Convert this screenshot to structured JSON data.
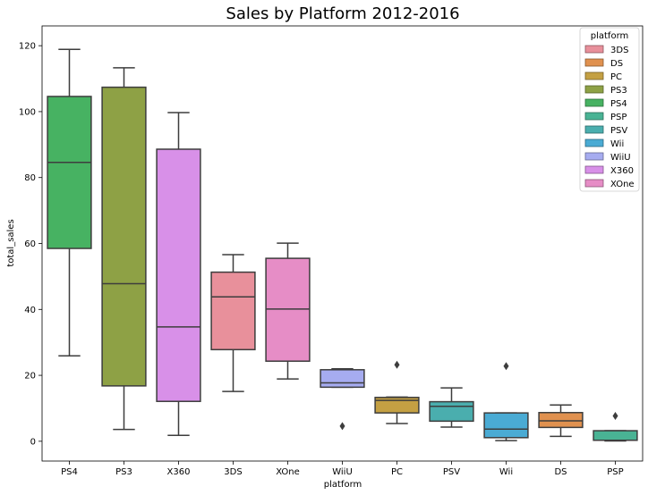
{
  "chart_data": {
    "type": "box",
    "title": "Sales by Platform 2012-2016",
    "xlabel": "platform",
    "ylabel": "total_sales",
    "ylim": [
      -6,
      126
    ],
    "yticks": [
      0,
      20,
      40,
      60,
      80,
      100,
      120
    ],
    "grid": false,
    "legend": {
      "title": "platform",
      "placement": "top-right",
      "entries": [
        "3DS",
        "DS",
        "PC",
        "PS3",
        "PS4",
        "PSP",
        "PSV",
        "Wii",
        "WiiU",
        "X360",
        "XOne"
      ]
    },
    "colors": {
      "3DS": "#e8909b",
      "DS": "#e0914f",
      "PC": "#c4a043",
      "PS3": "#8ea145",
      "PS4": "#47b262",
      "PSP": "#49b394",
      "PSV": "#4aaeae",
      "Wii": "#4aabd4",
      "WiiU": "#a6acf0",
      "X360": "#d890e8",
      "XOne": "#e68dc6"
    },
    "categories": [
      "PS4",
      "PS3",
      "X360",
      "3DS",
      "XOne",
      "WiiU",
      "PC",
      "PSV",
      "Wii",
      "DS",
      "PSP"
    ],
    "boxes": [
      {
        "platform": "PS4",
        "whisker_low": 25.9,
        "q1": 58.5,
        "median": 84.6,
        "q3": 104.6,
        "whisker_high": 118.9,
        "outliers": []
      },
      {
        "platform": "PS3",
        "whisker_low": 3.6,
        "q1": 16.8,
        "median": 47.8,
        "q3": 107.4,
        "whisker_high": 113.3,
        "outliers": []
      },
      {
        "platform": "X360",
        "whisker_low": 1.8,
        "q1": 12.1,
        "median": 34.7,
        "q3": 88.6,
        "whisker_high": 99.7,
        "outliers": []
      },
      {
        "platform": "3DS",
        "whisker_low": 15.1,
        "q1": 27.8,
        "median": 43.8,
        "q3": 51.3,
        "whisker_high": 56.6,
        "outliers": []
      },
      {
        "platform": "XOne",
        "whisker_low": 18.9,
        "q1": 24.3,
        "median": 40.1,
        "q3": 55.5,
        "whisker_high": 60.1,
        "outliers": []
      },
      {
        "platform": "WiiU",
        "whisker_low": 16.4,
        "q1": 16.4,
        "median": 17.7,
        "q3": 21.7,
        "whisker_high": 22.0,
        "outliers": [
          4.6
        ]
      },
      {
        "platform": "PC",
        "whisker_low": 5.4,
        "q1": 8.6,
        "median": 12.4,
        "q3": 13.3,
        "whisker_high": 13.4,
        "outliers": [
          23.2
        ]
      },
      {
        "platform": "PSV",
        "whisker_low": 4.3,
        "q1": 6.1,
        "median": 10.6,
        "q3": 12.0,
        "whisker_high": 16.2,
        "outliers": []
      },
      {
        "platform": "Wii",
        "whisker_low": 0.2,
        "q1": 1.1,
        "median": 3.7,
        "q3": 8.6,
        "whisker_high": 8.6,
        "outliers": [
          22.8
        ]
      },
      {
        "platform": "DS",
        "whisker_low": 1.5,
        "q1": 4.2,
        "median": 6.2,
        "q3": 8.7,
        "whisker_high": 11.0,
        "outliers": []
      },
      {
        "platform": "PSP",
        "whisker_low": 0.1,
        "q1": 0.3,
        "median": 0.3,
        "q3": 3.2,
        "whisker_high": 3.2,
        "outliers": [
          7.7
        ]
      }
    ]
  }
}
